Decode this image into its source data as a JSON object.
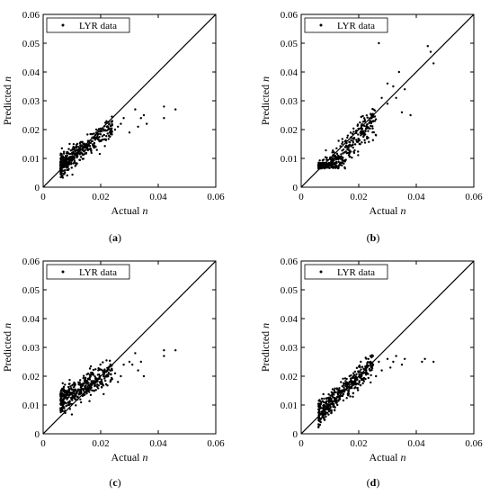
{
  "chart_data": [
    {
      "type": "scatter",
      "panel_label": "(a)",
      "title": "",
      "xlabel": "Actual n",
      "ylabel": "Predicted n",
      "xlim": [
        0,
        0.06
      ],
      "ylim": [
        0,
        0.06
      ],
      "xticks": [
        "0",
        "0.02",
        "0.04",
        "0.06"
      ],
      "yticks": [
        "0",
        "0.01",
        "0.02",
        "0.03",
        "0.04",
        "0.05",
        "0.06"
      ],
      "legend": "LYR data",
      "legend_position": "top-left",
      "reference_line": "y = x",
      "series": [
        {
          "name": "LYR data",
          "cloud": {
            "count": 420,
            "x_range": [
              0.006,
              0.024
            ],
            "slope": 0.78,
            "intercept": 0.0025,
            "noise": 0.0018
          },
          "points": [
            [
              0.025,
              0.02
            ],
            [
              0.027,
              0.022
            ],
            [
              0.03,
              0.019
            ],
            [
              0.032,
              0.027
            ],
            [
              0.035,
              0.025
            ],
            [
              0.036,
              0.022
            ],
            [
              0.042,
              0.028
            ],
            [
              0.042,
              0.024
            ],
            [
              0.046,
              0.027
            ],
            [
              0.028,
              0.024
            ],
            [
              0.024,
              0.023
            ],
            [
              0.026,
              0.021
            ],
            [
              0.033,
              0.021
            ],
            [
              0.034,
              0.024
            ]
          ]
        }
      ]
    },
    {
      "type": "scatter",
      "panel_label": "(b)",
      "title": "",
      "xlabel": "Actual n",
      "ylabel": "Predicted n",
      "xlim": [
        0,
        0.06
      ],
      "ylim": [
        0,
        0.06
      ],
      "xticks": [
        "0",
        "0.02",
        "0.04",
        "0.06"
      ],
      "yticks": [
        "0",
        "0.01",
        "0.02",
        "0.03",
        "0.04",
        "0.05",
        "0.06"
      ],
      "legend": "LYR data",
      "legend_position": "top-left",
      "reference_line": "y = x",
      "series": [
        {
          "name": "LYR data",
          "cloud": {
            "count": 420,
            "x_range": [
              0.006,
              0.026
            ],
            "slope": 1.1,
            "intercept": -0.004,
            "noise": 0.003,
            "floor": 0.0065
          },
          "points": [
            [
              0.027,
              0.05
            ],
            [
              0.044,
              0.049
            ],
            [
              0.045,
              0.047
            ],
            [
              0.046,
              0.043
            ],
            [
              0.03,
              0.036
            ],
            [
              0.032,
              0.035
            ],
            [
              0.034,
              0.04
            ],
            [
              0.035,
              0.026
            ],
            [
              0.036,
              0.034
            ],
            [
              0.028,
              0.031
            ],
            [
              0.026,
              0.018
            ],
            [
              0.03,
              0.029
            ],
            [
              0.033,
              0.031
            ],
            [
              0.038,
              0.025
            ]
          ]
        }
      ]
    },
    {
      "type": "scatter",
      "panel_label": "(c)",
      "title": "",
      "xlabel": "Actual n",
      "ylabel": "Predicted n",
      "xlim": [
        0,
        0.06
      ],
      "ylim": [
        0,
        0.06
      ],
      "xticks": [
        "0",
        "0.02",
        "0.04",
        "0.06"
      ],
      "yticks": [
        "0",
        "0.01",
        "0.02",
        "0.03",
        "0.04",
        "0.05",
        "0.06"
      ],
      "legend": "LYR data",
      "legend_position": "top-left",
      "reference_line": "y = x",
      "series": [
        {
          "name": "LYR data",
          "cloud": {
            "count": 420,
            "x_range": [
              0.006,
              0.024
            ],
            "slope": 0.55,
            "intercept": 0.0085,
            "noise": 0.0022
          },
          "points": [
            [
              0.025,
              0.021
            ],
            [
              0.027,
              0.02
            ],
            [
              0.03,
              0.025
            ],
            [
              0.032,
              0.028
            ],
            [
              0.033,
              0.022
            ],
            [
              0.035,
              0.02
            ],
            [
              0.042,
              0.029
            ],
            [
              0.042,
              0.027
            ],
            [
              0.046,
              0.029
            ],
            [
              0.028,
              0.024
            ],
            [
              0.026,
              0.018
            ],
            [
              0.031,
              0.024
            ],
            [
              0.034,
              0.025
            ]
          ]
        }
      ]
    },
    {
      "type": "scatter",
      "panel_label": "(d)",
      "title": "",
      "xlabel": "Actual n",
      "ylabel": "Predicted n",
      "xlim": [
        0,
        0.06
      ],
      "ylim": [
        0,
        0.06
      ],
      "xticks": [
        "0",
        "0.02",
        "0.04",
        "0.06"
      ],
      "yticks": [
        "0",
        "0.01",
        "0.02",
        "0.03",
        "0.04",
        "0.05",
        "0.06"
      ],
      "legend": "LYR data",
      "legend_position": "top-left",
      "reference_line": "y = x",
      "series": [
        {
          "name": "LYR data",
          "cloud": {
            "count": 420,
            "x_range": [
              0.006,
              0.025
            ],
            "slope": 0.9,
            "intercept": 0.0015,
            "noise": 0.002
          },
          "points": [
            [
              0.025,
              0.024
            ],
            [
              0.027,
              0.025
            ],
            [
              0.03,
              0.026
            ],
            [
              0.032,
              0.025
            ],
            [
              0.035,
              0.024
            ],
            [
              0.036,
              0.026
            ],
            [
              0.042,
              0.025
            ],
            [
              0.043,
              0.026
            ],
            [
              0.046,
              0.025
            ],
            [
              0.028,
              0.022
            ],
            [
              0.026,
              0.02
            ],
            [
              0.033,
              0.027
            ],
            [
              0.031,
              0.023
            ]
          ]
        }
      ]
    }
  ]
}
